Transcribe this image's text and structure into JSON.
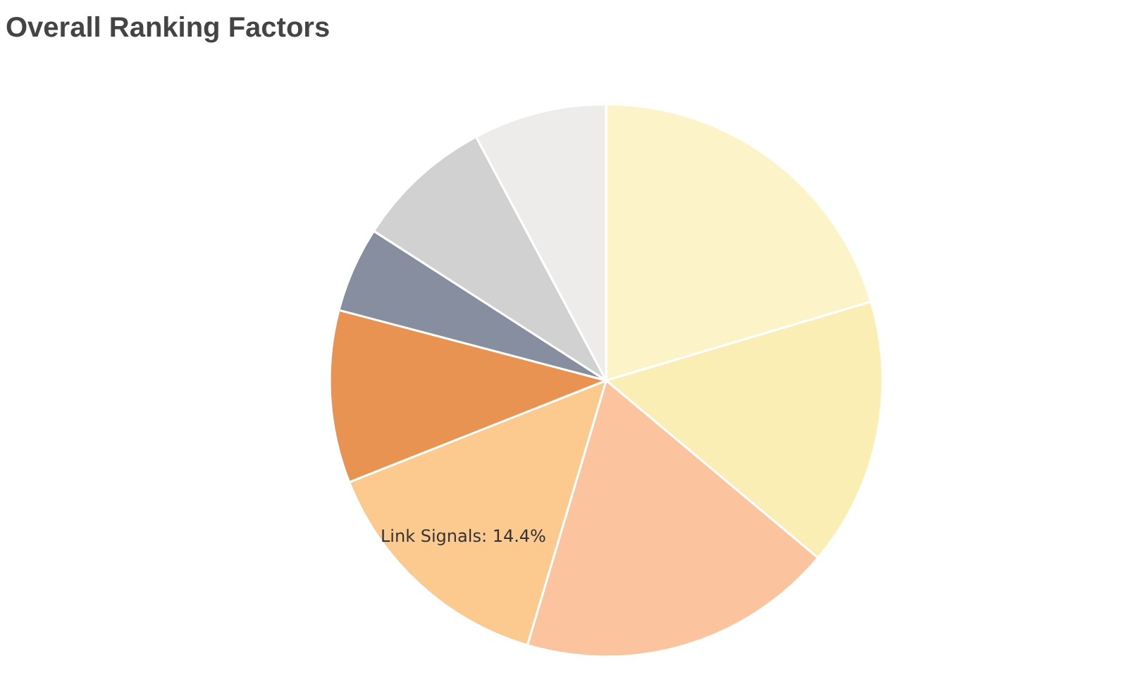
{
  "chart_data": {
    "type": "pie",
    "title": "Overall Ranking Factors",
    "categories": [
      null,
      null,
      null,
      "Link Signals",
      null,
      null,
      null,
      null
    ],
    "values": [
      20.4,
      15.7,
      18.5,
      14.4,
      10.1,
      5.0,
      8.1,
      7.8
    ],
    "value_labels": [
      null,
      null,
      null,
      "14.4%",
      null,
      null,
      null,
      null
    ],
    "colors": [
      "#fdf3c9",
      "#fbeeb5",
      "#fbc39e",
      "#fcc98e",
      "#e99352",
      "#868e9f",
      "#d1d1d1",
      "#eeeceb"
    ]
  }
}
